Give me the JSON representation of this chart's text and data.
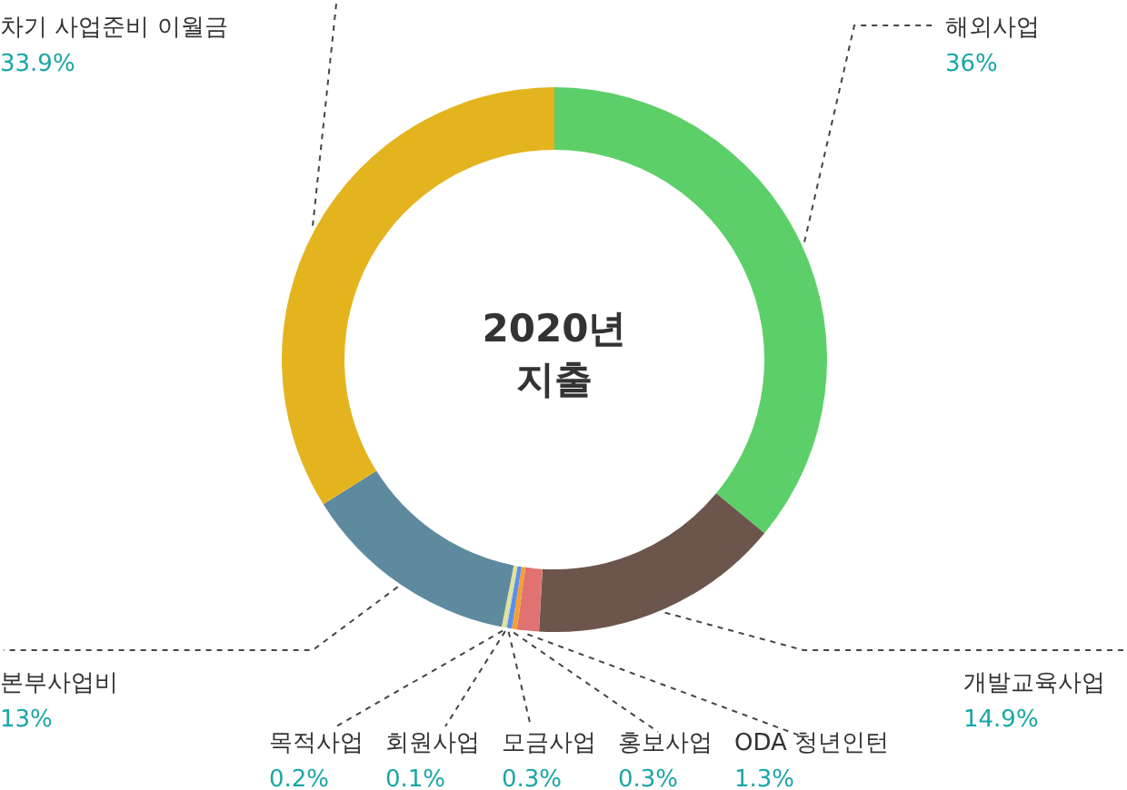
{
  "chart_data": {
    "type": "donut",
    "title": "2020년 지출",
    "categories": [
      "해외사업",
      "개발교육사업",
      "ODA 청년인턴",
      "홍보사업",
      "모금사업",
      "회원사업",
      "목적사업",
      "본부사업비",
      "차기 사업준비 이월금"
    ],
    "values": [
      36,
      14.9,
      1.3,
      0.3,
      0.3,
      0.1,
      0.2,
      13,
      33.9
    ],
    "value_labels": [
      "36%",
      "14.9%",
      "1.3%",
      "0.3%",
      "0.3%",
      "0.1%",
      "0.2%",
      "13%",
      "33.9%"
    ],
    "colors": [
      "#5dcf68",
      "#6b554c",
      "#e07272",
      "#f5a030",
      "#5b8def",
      "#bfe0b0",
      "#e8e090",
      "#5d8a9e",
      "#e4b41f"
    ],
    "legend": false
  }
}
